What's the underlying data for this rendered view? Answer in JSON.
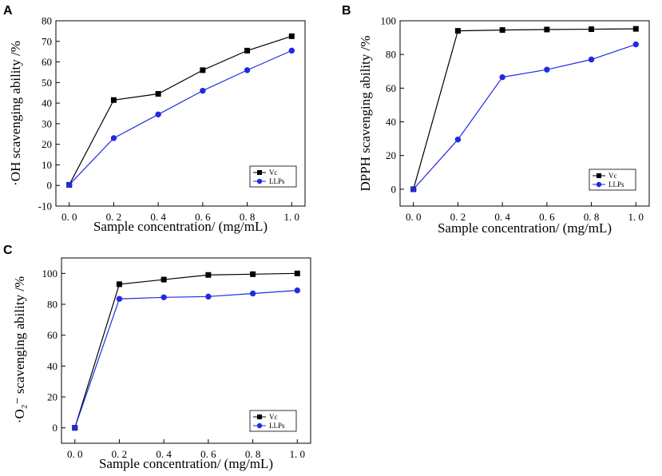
{
  "chart_data": [
    {
      "panel": "A",
      "type": "line",
      "x": [
        0.0,
        0.2,
        0.4,
        0.6,
        0.8,
        1.0
      ],
      "x_tick_labels": [
        "0. 0",
        "0. 2",
        "0. 4",
        "0. 6",
        "0. 8",
        "1. 0"
      ],
      "xlim": [
        -0.06,
        1.06
      ],
      "ylim": [
        -10,
        80
      ],
      "y_ticks": [
        -10,
        0,
        10,
        20,
        30,
        40,
        50,
        60,
        70,
        80
      ],
      "xlabel": "Sample concentration/ (mg/mL)",
      "ylabel": "·OH scavenging ability /%",
      "legend_position": "bottom-right",
      "series": [
        {
          "name": "Vc",
          "color": "#000000",
          "marker": "square",
          "values": [
            0.3,
            41.5,
            44.5,
            56,
            65.5,
            72.5
          ]
        },
        {
          "name": "LLPs",
          "color": "#1f2be0",
          "marker": "circle",
          "values": [
            0.3,
            23,
            34.5,
            46,
            56,
            65.5
          ]
        }
      ]
    },
    {
      "panel": "B",
      "type": "line",
      "x": [
        0.0,
        0.2,
        0.4,
        0.6,
        0.8,
        1.0
      ],
      "x_tick_labels": [
        "0. 0",
        "0. 2",
        "0. 4",
        "0. 6",
        "0. 8",
        "1. 0"
      ],
      "xlim": [
        -0.06,
        1.06
      ],
      "ylim": [
        -10,
        100
      ],
      "y_ticks": [
        0,
        20,
        40,
        60,
        80,
        100
      ],
      "xlabel": "Sample concentration/ (mg/mL)",
      "ylabel": "DPPH scavenging ability /%",
      "legend_position": "bottom-right",
      "series": [
        {
          "name": "Vc",
          "color": "#000000",
          "marker": "square",
          "values": [
            0,
            94,
            94.5,
            94.8,
            95,
            95.2
          ]
        },
        {
          "name": "LLPs",
          "color": "#1f2be0",
          "marker": "circle",
          "values": [
            0,
            29.5,
            66.5,
            71,
            77,
            86
          ]
        }
      ]
    },
    {
      "panel": "C",
      "type": "line",
      "x": [
        0.0,
        0.2,
        0.4,
        0.6,
        0.8,
        1.0
      ],
      "x_tick_labels": [
        "0. 0",
        "0. 2",
        "0. 4",
        "0. 6",
        "0. 8",
        "1. 0"
      ],
      "xlim": [
        -0.06,
        1.06
      ],
      "ylim": [
        -10,
        110
      ],
      "y_ticks": [
        0,
        20,
        40,
        60,
        80,
        100
      ],
      "xlabel": "Sample concentration/ (mg/mL)",
      "ylabel": "·O₂⁻ scavenging ability /%",
      "legend_position": "bottom-right",
      "series": [
        {
          "name": "Vc",
          "color": "#000000",
          "marker": "square",
          "values": [
            0,
            93,
            96,
            99,
            99.5,
            100
          ]
        },
        {
          "name": "LLPs",
          "color": "#1f2be0",
          "marker": "circle",
          "values": [
            0,
            83.5,
            84.5,
            85,
            87,
            89
          ]
        }
      ]
    }
  ]
}
